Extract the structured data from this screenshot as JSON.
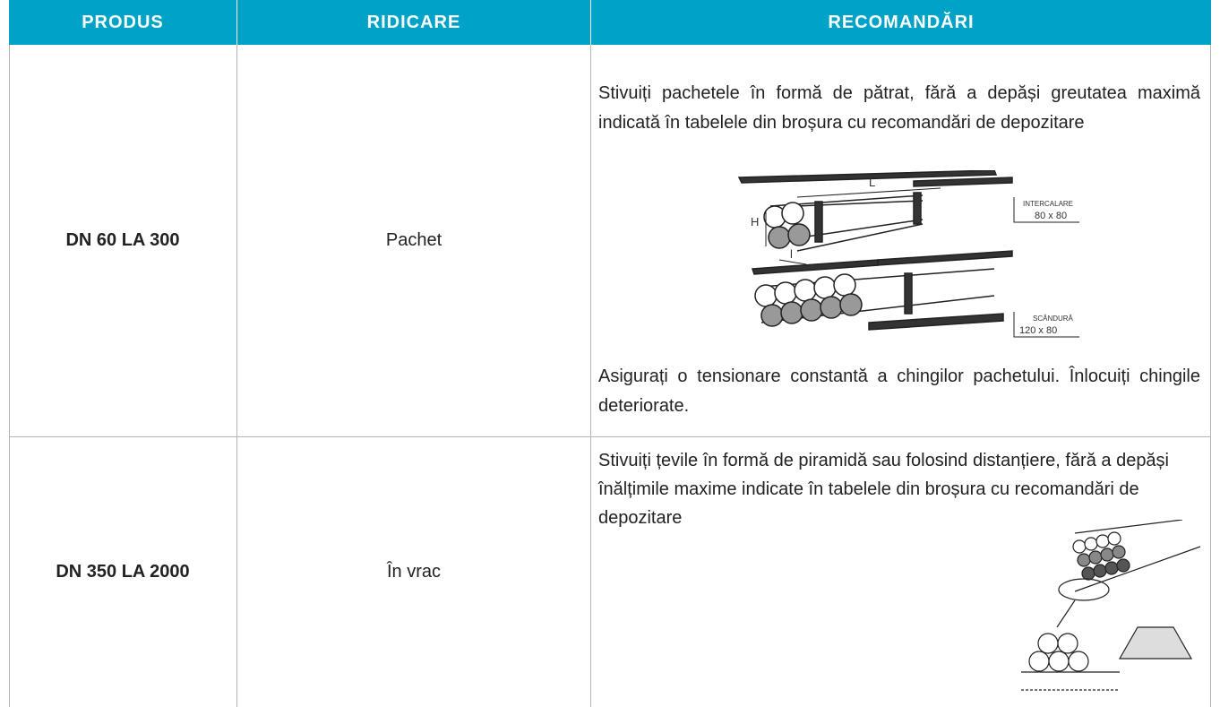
{
  "table": {
    "header": [
      "PRODUS",
      "RIDICARE",
      "RECOMANDĂRI"
    ],
    "rows": [
      {
        "product": "DN 60 LA 300",
        "lifting": "Pachet",
        "recommendations": [
          "Stivuiți pachetele în formă de pătrat, fără a depăși greutatea maximă indicată în tabelele din broșura cu recomandări de depozitare",
          "Asigurați o tensionare constantă a chingilor pachetului. Înlocuiți chingile deteriorate."
        ],
        "figure": {
          "length": "L",
          "height": "H",
          "width": "l",
          "spacer": "INTERCALARE",
          "spacer_size": "80 x 80",
          "plank": "SCÂNDURĂ",
          "plank_size": "120 x 80"
        }
      },
      {
        "product": "DN 350 LA 2000",
        "lifting": "În vrac",
        "recommendations": [
          "Stivuiți țevile în formă de piramidă sau folosind distanțiere, fără a depăși înălțimile maxime indicate în tabelele din broșura cu recomandări de depozitare"
        ]
      }
    ]
  }
}
